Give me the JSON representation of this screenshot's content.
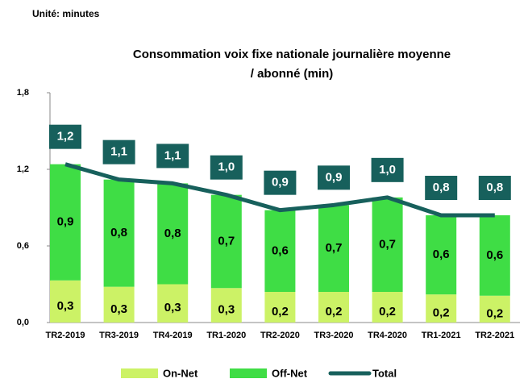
{
  "chart_data": {
    "type": "stacked-bar-line",
    "unit_label": "Unité: minutes",
    "title": [
      "Consommation voix fixe nationale journalière moyenne",
      "/ abonné (min)"
    ],
    "categories": [
      "TR2-2019",
      "TR3-2019",
      "TR4-2019",
      "TR1-2020",
      "TR2-2020",
      "TR3-2020",
      "TR4-2020",
      "TR1-2021",
      "TR2-2021"
    ],
    "series": [
      {
        "name": "On-Net",
        "color": "#ccf266",
        "values": [
          0.33,
          0.28,
          0.3,
          0.27,
          0.24,
          0.24,
          0.24,
          0.22,
          0.21
        ],
        "value_labels": [
          "0,3",
          "0,3",
          "0,3",
          "0,3",
          "0,2",
          "0,2",
          "0,2",
          "0,2",
          "0,2"
        ]
      },
      {
        "name": "Off-Net",
        "color": "#3fdd45",
        "values": [
          0.91,
          0.84,
          0.79,
          0.73,
          0.64,
          0.68,
          0.74,
          0.62,
          0.63
        ],
        "value_labels": [
          "0,9",
          "0,8",
          "0,8",
          "0,7",
          "0,6",
          "0,7",
          "0,7",
          "0,6",
          "0,6"
        ]
      },
      {
        "name": "Total",
        "color": "#17605c",
        "line": true,
        "values": [
          1.24,
          1.12,
          1.09,
          1.0,
          0.88,
          0.92,
          0.98,
          0.84,
          0.84
        ],
        "value_labels": [
          "1,2",
          "1,1",
          "1,1",
          "1,0",
          "0,9",
          "0,9",
          "1,0",
          "0,8",
          "0,8"
        ]
      }
    ],
    "ylim": [
      0,
      1.8
    ],
    "yticks": [
      {
        "value": 0,
        "label": "0,0"
      },
      {
        "value": 0.6,
        "label": "0,6"
      },
      {
        "value": 1.2,
        "label": "1,2"
      },
      {
        "value": 1.8,
        "label": "1,8"
      }
    ],
    "grid": false,
    "legend": "bottom"
  }
}
